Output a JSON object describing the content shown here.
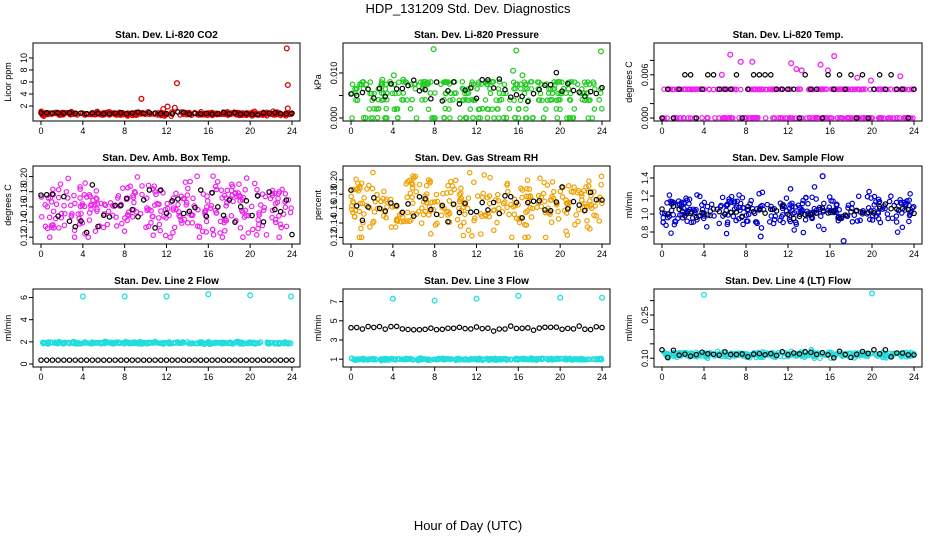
{
  "figure": {
    "title": "HDP_131209  Std. Dev. Diagnostics",
    "xlabel": "Hour of Day (UTC)"
  },
  "chart_data": [
    {
      "type": "scatter",
      "title": "Stan. Dev. Li-820 CO2",
      "ylabel": "Licor ppm",
      "color": "#dd0000",
      "xlim": [
        0,
        24
      ],
      "ylim": [
        0,
        12
      ],
      "yticks": [
        2,
        4,
        6,
        8,
        10
      ],
      "ytick_labels": [
        "2",
        "4",
        "6",
        "8",
        "10"
      ],
      "xticks": [
        0,
        4,
        8,
        12,
        16,
        20,
        24
      ],
      "base": {
        "mean": 0.7,
        "sd": 0.15,
        "min": 0.3,
        "max": 1.2
      },
      "outliers": [
        {
          "x": 9.6,
          "y": 3.2
        },
        {
          "x": 11.7,
          "y": 1.5
        },
        {
          "x": 12.1,
          "y": 1.9
        },
        {
          "x": 12.8,
          "y": 1.7
        },
        {
          "x": 13.0,
          "y": 5.8
        },
        {
          "x": 15.3,
          "y": 1.0
        },
        {
          "x": 23.5,
          "y": 11.6
        },
        {
          "x": 23.6,
          "y": 5.5
        },
        {
          "x": 23.6,
          "y": 1.6
        }
      ],
      "black": {
        "mean": 0.8,
        "sd": 0.1
      }
    },
    {
      "type": "scatter",
      "title": "Stan. Dev. Li-820 Pressure",
      "ylabel": "kPa",
      "color": "#22cc22",
      "xlim": [
        0,
        24
      ],
      "ylim": [
        0,
        0.016
      ],
      "yticks": [
        0,
        0.005,
        0.01
      ],
      "ytick_labels": [
        "0.000",
        "",
        "0.010"
      ],
      "xticks": [
        0,
        4,
        8,
        12,
        16,
        20,
        24
      ],
      "base": {
        "levels": [
          0.0,
          0.002,
          0.004,
          0.0055,
          0.0065,
          0.0075,
          0.008
        ],
        "min": 0,
        "max": 0.009
      },
      "outliers": [
        {
          "x": 3.0,
          "y": 0.0085
        },
        {
          "x": 4.1,
          "y": 0.0095
        },
        {
          "x": 5.0,
          "y": 0.0085
        },
        {
          "x": 7.9,
          "y": 0.0153
        },
        {
          "x": 15.5,
          "y": 0.0105
        },
        {
          "x": 15.8,
          "y": 0.015
        },
        {
          "x": 16.4,
          "y": 0.0095
        },
        {
          "x": 23.9,
          "y": 0.0148
        }
      ],
      "black": {
        "mean": 0.0065,
        "sd": 0.0015
      }
    },
    {
      "type": "scatter",
      "title": "Stan. Dev. Li-820 Temp.",
      "ylabel": "degrees C",
      "color": "#ee22ee",
      "xlim": [
        0,
        24
      ],
      "ylim": [
        0,
        0.01
      ],
      "yticks": [
        0,
        0.002,
        0.004,
        0.006,
        0.008
      ],
      "ytick_labels": [
        "0.000",
        "",
        "",
        "0.006",
        ""
      ],
      "xticks": [
        0,
        4,
        8,
        12,
        16,
        20,
        24
      ],
      "base": {
        "levels": [
          0.0,
          0.004
        ],
        "min": 0,
        "max": 0.004
      },
      "outliers": [
        {
          "x": 5.7,
          "y": 0.006
        },
        {
          "x": 6.5,
          "y": 0.0088
        },
        {
          "x": 7.5,
          "y": 0.0078
        },
        {
          "x": 8.6,
          "y": 0.0078
        },
        {
          "x": 12.3,
          "y": 0.0076
        },
        {
          "x": 12.8,
          "y": 0.0068
        },
        {
          "x": 13.3,
          "y": 0.0066
        },
        {
          "x": 15.1,
          "y": 0.0074
        },
        {
          "x": 15.8,
          "y": 0.0066
        },
        {
          "x": 16.4,
          "y": 0.0086
        },
        {
          "x": 18.6,
          "y": 0.0056
        },
        {
          "x": 19.9,
          "y": 0.0052
        },
        {
          "x": 22.7,
          "y": 0.0058
        }
      ],
      "black": {
        "levels": [
          0.0,
          0.004,
          0.006
        ]
      }
    },
    {
      "type": "scatter",
      "title": "Stan. Dev. Amb. Box Temp.",
      "ylabel": "degrees C",
      "color": "#ee22ee",
      "xlim": [
        0,
        24
      ],
      "ylim": [
        0.115,
        0.21
      ],
      "yticks": [
        0.12,
        0.14,
        0.16,
        0.18,
        0.2
      ],
      "ytick_labels": [
        "0.12",
        "0.14",
        "0.16",
        "0.18",
        "0.20"
      ],
      "xticks": [
        0,
        4,
        8,
        12,
        16,
        20,
        24
      ],
      "base": {
        "mean": 0.155,
        "sd": 0.02,
        "min": 0.12,
        "max": 0.205
      },
      "outliers": [],
      "black": {
        "mean": 0.158,
        "sd": 0.015
      }
    },
    {
      "type": "scatter",
      "title": "Stan. Dev. Gas Stream RH",
      "ylabel": "percent",
      "color": "#f0a000",
      "xlim": [
        0,
        24
      ],
      "ylim": [
        0.115,
        0.215
      ],
      "yticks": [
        0.12,
        0.14,
        0.16,
        0.18,
        0.2
      ],
      "ytick_labels": [
        "0.12",
        "0.14",
        "0.16",
        "0.18",
        "0.20"
      ],
      "xticks": [
        0,
        4,
        8,
        12,
        16,
        20,
        24
      ],
      "base": {
        "mean": 0.165,
        "sd": 0.02,
        "min": 0.12,
        "max": 0.21
      },
      "outliers": [],
      "black": {
        "mean": 0.165,
        "sd": 0.01
      }
    },
    {
      "type": "scatter",
      "title": "Stan. Dev. Sample Flow",
      "ylabel": "ml/min",
      "color": "#0000cc",
      "xlim": [
        0,
        24
      ],
      "ylim": [
        0.7,
        1.5
      ],
      "yticks": [
        0.8,
        1.0,
        1.2,
        1.4
      ],
      "ytick_labels": [
        "0.8",
        "1.0",
        "1.2",
        "1.4"
      ],
      "xticks": [
        0,
        4,
        8,
        12,
        16,
        20,
        24
      ],
      "base": {
        "mean": 1.03,
        "sd": 0.1,
        "min": 0.72,
        "max": 1.45
      },
      "outliers": [
        {
          "x": 15.3,
          "y": 1.42
        },
        {
          "x": 9.4,
          "y": 0.75
        },
        {
          "x": 17.3,
          "y": 0.7
        }
      ],
      "black": {
        "mean": 1.02,
        "sd": 0.04
      }
    },
    {
      "type": "scatter",
      "title": "Stan. Dev. Line 2 Flow",
      "ylabel": "ml/min",
      "color": "#22dddd",
      "xlim": [
        0,
        24
      ],
      "ylim": [
        0,
        6.5
      ],
      "yticks": [
        0,
        2,
        4,
        6
      ],
      "ytick_labels": [
        "0",
        "2",
        "4",
        "6"
      ],
      "xticks": [
        0,
        4,
        8,
        12,
        16,
        20,
        24
      ],
      "base": {
        "levels": [
          1.9
        ],
        "sd": 0.05
      },
      "outliers": [
        {
          "x": 4.0,
          "y": 6.1
        },
        {
          "x": 8.0,
          "y": 6.1
        },
        {
          "x": 12.0,
          "y": 6.1
        },
        {
          "x": 16.0,
          "y": 6.3
        },
        {
          "x": 20.0,
          "y": 6.2
        },
        {
          "x": 23.9,
          "y": 6.1
        }
      ],
      "black": {
        "levels": [
          0.35
        ]
      }
    },
    {
      "type": "scatter",
      "title": "Stan. Dev. Line 3 Flow",
      "ylabel": "ml/min",
      "color": "#22dddd",
      "xlim": [
        0,
        24
      ],
      "ylim": [
        0.5,
        8
      ],
      "yticks": [
        1,
        3,
        5,
        7
      ],
      "ytick_labels": [
        "1",
        "3",
        "5",
        "7"
      ],
      "xticks": [
        0,
        4,
        8,
        12,
        16,
        20,
        24
      ],
      "base": {
        "levels": [
          1.0
        ],
        "sd": 0.05
      },
      "outliers": [
        {
          "x": 4.0,
          "y": 7.3
        },
        {
          "x": 8.0,
          "y": 7.1
        },
        {
          "x": 12.0,
          "y": 7.3
        },
        {
          "x": 16.0,
          "y": 7.6
        },
        {
          "x": 20.0,
          "y": 7.4
        },
        {
          "x": 24.0,
          "y": 7.4
        }
      ],
      "black": {
        "mean": 4.2,
        "sd": 0.12
      }
    },
    {
      "type": "scatter",
      "title": "Stan. Dev. Line 4 (LT) Flow",
      "ylabel": "ml/min",
      "color": "#22dddd",
      "xlim": [
        0,
        24
      ],
      "ylim": [
        0.08,
        0.33
      ],
      "yticks": [
        0.1,
        0.15,
        0.2,
        0.25,
        0.3
      ],
      "ytick_labels": [
        "0.10",
        "",
        "",
        "0.25",
        ""
      ],
      "xticks": [
        0,
        4,
        8,
        12,
        16,
        20,
        24
      ],
      "base": {
        "mean": 0.112,
        "sd": 0.005,
        "min": 0.1,
        "max": 0.13
      },
      "outliers": [
        {
          "x": 4.0,
          "y": 0.32
        },
        {
          "x": 20.0,
          "y": 0.325
        }
      ],
      "black": {
        "mean": 0.115,
        "sd": 0.006
      }
    }
  ]
}
